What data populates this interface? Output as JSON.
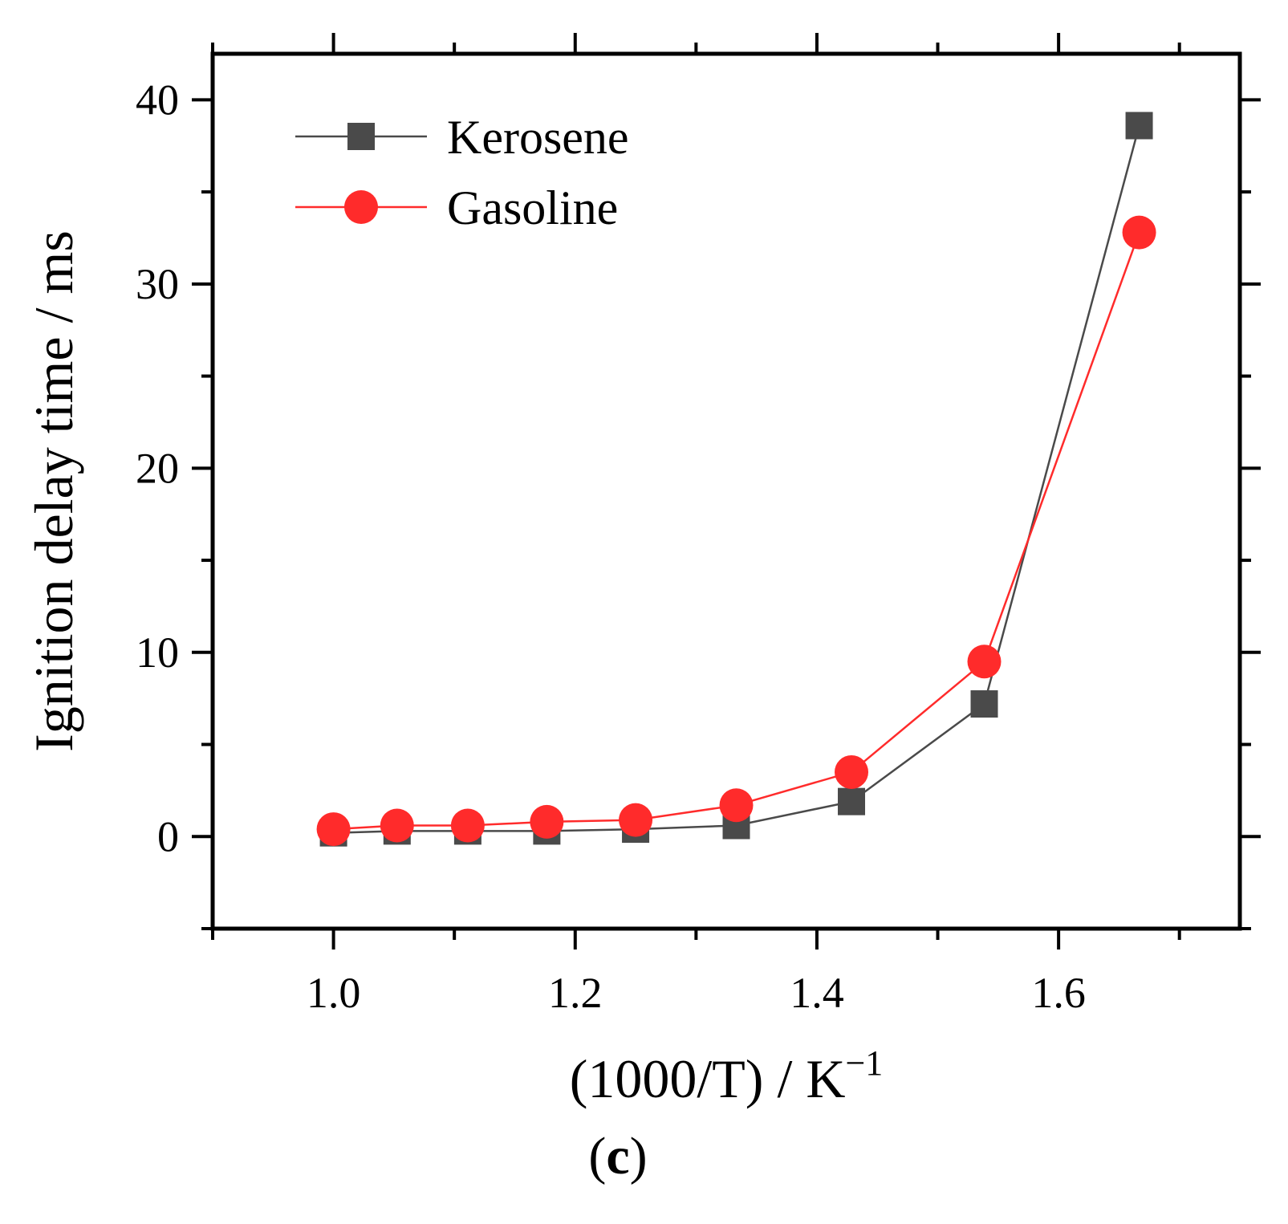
{
  "chart_data": {
    "type": "line",
    "xlabel": "(1000/T) / K",
    "xlabel_superscript": "−1",
    "ylabel": "Ignition delay time / ms",
    "panel_label_open": "(",
    "panel_label_letter": "c",
    "panel_label_close": ")",
    "xlim": [
      0.9,
      1.75
    ],
    "ylim": [
      -5,
      42.5
    ],
    "x_ticks": [
      1.0,
      1.2,
      1.4,
      1.6
    ],
    "x_tick_labels": [
      "1.0",
      "1.2",
      "1.4",
      "1.6"
    ],
    "x_minor_ticks": [
      0.9,
      1.1,
      1.3,
      1.5,
      1.7
    ],
    "y_ticks": [
      0,
      10,
      20,
      30,
      40
    ],
    "y_tick_labels": [
      "0",
      "10",
      "20",
      "30",
      "40"
    ],
    "y_minor_ticks": [
      -5,
      5,
      15,
      25,
      35
    ],
    "grid": false,
    "legend_position": "top-left",
    "series": [
      {
        "name": "Kerosene",
        "color": "#4a4a4a",
        "marker": "square",
        "x": [
          1.0,
          1.0526,
          1.1111,
          1.1765,
          1.25,
          1.3333,
          1.4286,
          1.5385,
          1.6667
        ],
        "y": [
          0.2,
          0.3,
          0.3,
          0.3,
          0.4,
          0.6,
          1.9,
          7.2,
          38.6
        ]
      },
      {
        "name": "Gasoline",
        "color": "#ff2b2b",
        "marker": "circle",
        "x": [
          1.0,
          1.0526,
          1.1111,
          1.1765,
          1.25,
          1.3333,
          1.4286,
          1.5385,
          1.6667
        ],
        "y": [
          0.4,
          0.6,
          0.6,
          0.8,
          0.9,
          1.7,
          3.5,
          9.5,
          32.8
        ]
      }
    ]
  }
}
